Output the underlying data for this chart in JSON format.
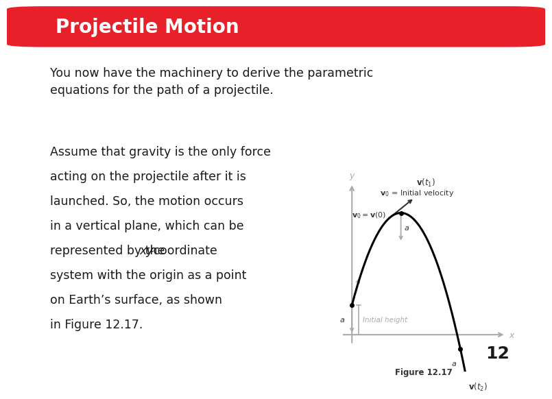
{
  "title": "Projectile Motion",
  "title_bg_color": "#E8202A",
  "title_text_color": "#FFFFFF",
  "body_bg_color": "#FFFFFF",
  "para1": "You now have the machinery to derive the parametric\nequations for the path of a projectile.",
  "para2_lines": [
    "Assume that gravity is the only force",
    "acting on the projectile after it is",
    "launched. So, the motion occurs",
    "in a vertical plane, which can be",
    "represented by the xy-coordinate",
    "system with the origin as a point",
    "on Earth’s surface, as shown",
    "in Figure 12.17."
  ],
  "figure_caption": "Figure 12.17",
  "slide_number": "12",
  "text_color": "#1a1a1a",
  "gray_color": "#999999",
  "dark_color": "#333333",
  "arrow_gray": "#aaaaaa"
}
